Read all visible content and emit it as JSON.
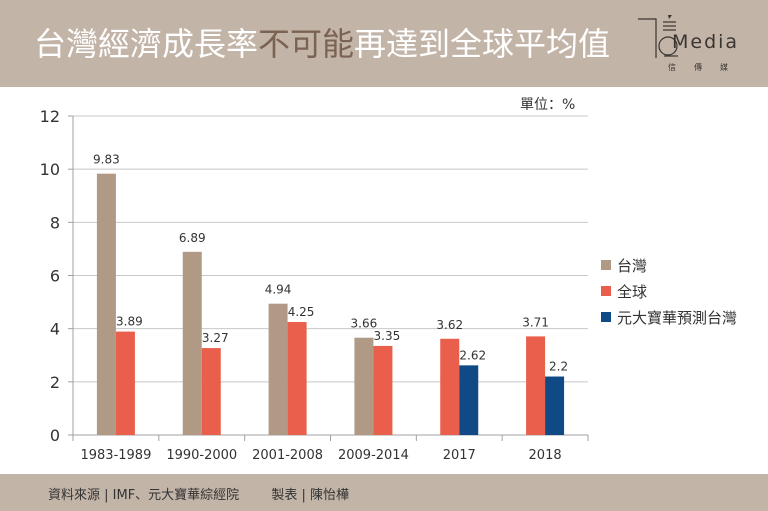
{
  "header": {
    "title_part1": "台灣經濟成長率",
    "title_highlight": "不可能",
    "title_part2": "再達到全球平均值",
    "logo_text": "Media",
    "logo_subtitle": "信傳媒"
  },
  "unit_label": "單位：%",
  "footer": {
    "source": "資料來源 | IMF、元大寶華綜經院",
    "author": "製表 | 陳怡樺"
  },
  "colors": {
    "header_bg": "#c3b4a8",
    "taiwan": "#b09a85",
    "global": "#e95f4c",
    "forecast": "#0f4a87"
  },
  "chart_data": {
    "type": "bar",
    "title": "台灣經濟成長率不可能再達到全球平均值",
    "xlabel": "",
    "ylabel": "單位：%",
    "ylim": [
      0,
      12
    ],
    "yticks": [
      0,
      2,
      4,
      6,
      8,
      10,
      12
    ],
    "grid": true,
    "legend_position": "right",
    "categories": [
      "1983-1989",
      "1990-2000",
      "2001-2008",
      "2009-2014",
      "2017",
      "2018"
    ],
    "series": [
      {
        "name": "台灣",
        "color": "#b09a85",
        "values": [
          9.83,
          6.89,
          4.94,
          3.66,
          null,
          null
        ],
        "labels": [
          "9.83",
          "6.89",
          "4.94",
          "3.66",
          null,
          null
        ]
      },
      {
        "name": "全球",
        "color": "#e95f4c",
        "values": [
          3.89,
          3.27,
          4.25,
          3.35,
          3.62,
          3.71
        ],
        "labels": [
          "3.89",
          "3.27",
          "4.25",
          "3.35",
          "3.62",
          "3.71"
        ]
      },
      {
        "name": "元大寶華預測台灣",
        "color": "#0f4a87",
        "values": [
          null,
          null,
          null,
          null,
          2.62,
          2.2
        ],
        "labels": [
          null,
          null,
          null,
          null,
          "2.62",
          "2.2"
        ]
      }
    ]
  }
}
